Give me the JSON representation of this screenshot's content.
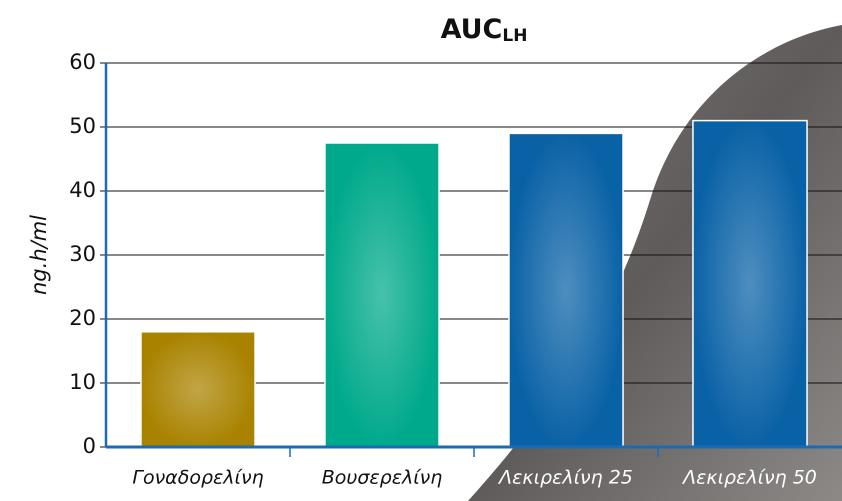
{
  "chart_data": {
    "type": "bar",
    "title": "AUC",
    "title_subscript": "LH",
    "y_label": "ng.h/ml",
    "categories": [
      "Γοναδορελίνη",
      "Βουσερελίνη",
      "Λεκιρελίνη 25",
      "Λεκιρελίνη 50"
    ],
    "values": [
      18,
      47.5,
      49,
      51
    ],
    "colors": [
      "#a98300",
      "#00a98b",
      "#0a62a6",
      "#0a62a6"
    ],
    "category_label_colors": [
      "#111111",
      "#111111",
      "#ffffff",
      "#ffffff"
    ],
    "ylim": [
      0,
      60
    ],
    "yticks": [
      0,
      10,
      20,
      30,
      40,
      50,
      60
    ],
    "grid": true,
    "axis_color": "#1a6ab4"
  }
}
